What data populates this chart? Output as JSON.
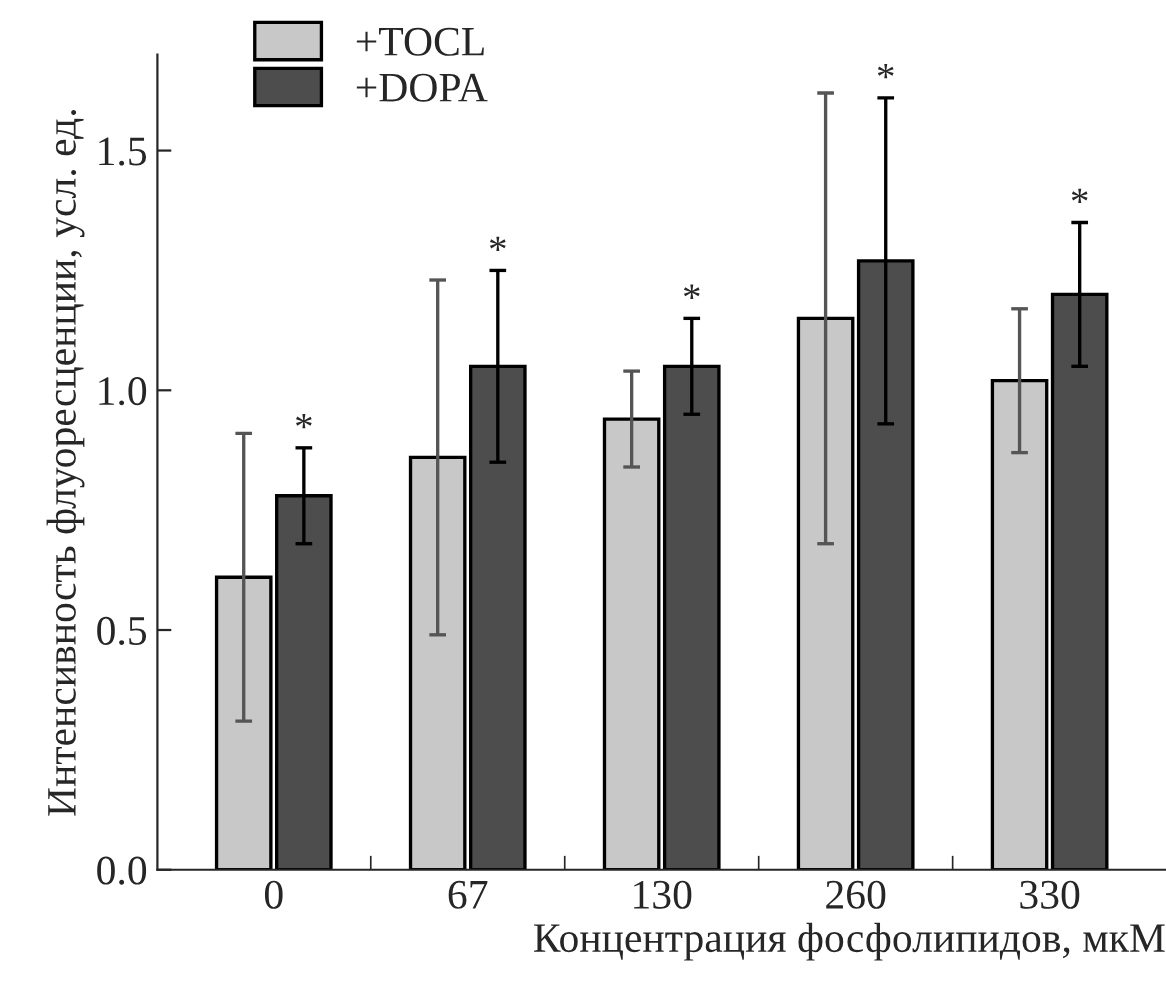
{
  "chart_data": {
    "type": "bar",
    "xlabel": "Концентрация фосфолипидов, мкМ",
    "ylabel": "Интенсивность флуоресценции, усл. ед.",
    "categories": [
      "0",
      "67",
      "130",
      "260",
      "330"
    ],
    "series": [
      {
        "name": "+TOCL",
        "color": "#c8c8c8",
        "values": [
          0.61,
          0.86,
          0.94,
          1.15,
          1.02
        ],
        "errors": [
          0.3,
          0.37,
          0.1,
          0.47,
          0.15
        ]
      },
      {
        "name": "+DOPA",
        "color": "#4d4d4d",
        "values": [
          0.78,
          1.05,
          1.05,
          1.27,
          1.2
        ],
        "errors": [
          0.1,
          0.2,
          0.1,
          0.34,
          0.15
        ]
      }
    ],
    "annotations": [
      "*",
      "*",
      "*",
      "*",
      "*"
    ],
    "ylim": [
      0,
      1.7
    ],
    "yticks": [
      {
        "value": 0,
        "label": "0.0"
      },
      0.5,
      {
        "value": 1,
        "label": "1.0"
      },
      1.5
    ],
    "legend": "top left",
    "grid": false
  }
}
